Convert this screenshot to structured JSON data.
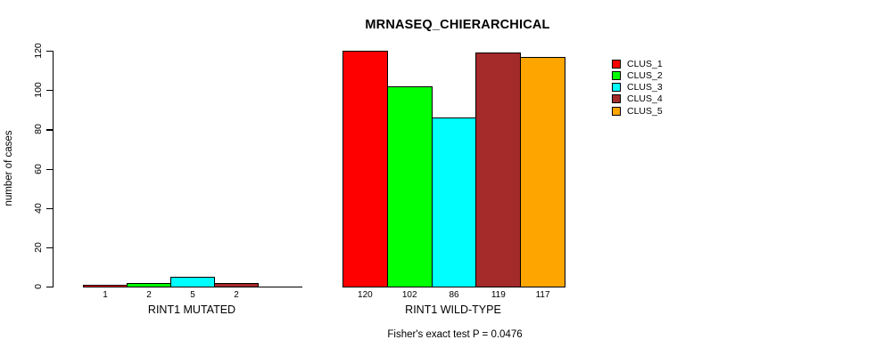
{
  "chart_data": {
    "type": "bar",
    "title": "MRNASEQ_CHIERARCHICAL",
    "ylabel": "number of cases",
    "ylim": [
      0,
      120
    ],
    "yticks": [
      0,
      20,
      40,
      60,
      80,
      100,
      120
    ],
    "grid": false,
    "legend_position": "right",
    "series": [
      "CLUS_1",
      "CLUS_2",
      "CLUS_3",
      "CLUS_4",
      "CLUS_5"
    ],
    "colors": [
      "#ff0000",
      "#00ff00",
      "#00ffff",
      "#a52a2a",
      "#ffa500"
    ],
    "groups": [
      {
        "label": "RINT1 MUTATED",
        "values": [
          1,
          2,
          5,
          2,
          0
        ],
        "value_labels": [
          "1",
          "2",
          "5",
          "2",
          ""
        ]
      },
      {
        "label": "RINT1 WILD-TYPE",
        "values": [
          120,
          102,
          86,
          119,
          117
        ],
        "value_labels": [
          "120",
          "102",
          "86",
          "119",
          "117"
        ]
      }
    ],
    "annotation": "Fisher's exact test P = 0.0476"
  }
}
